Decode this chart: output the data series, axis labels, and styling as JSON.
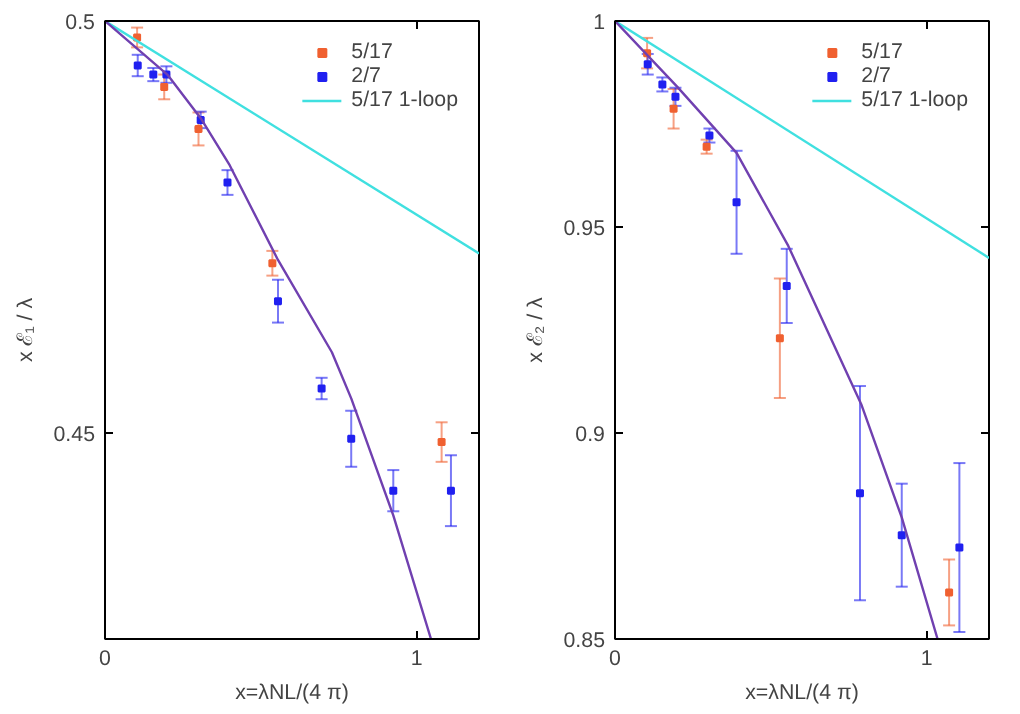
{
  "chart_data": [
    {
      "type": "scatter",
      "xlabel": "x=λNL/(4 π)",
      "ylabel": "x ℰ₁ / λ",
      "xlim": [
        0,
        1.2
      ],
      "ylim": [
        0.425,
        0.5
      ],
      "xticks": [
        0,
        1
      ],
      "yticks": [
        0.45,
        0.5
      ],
      "grid": false,
      "legend": "top right",
      "marker": "square",
      "series": [
        {
          "name": "5/17",
          "color": "#f06030",
          "x": [
            0.103,
            0.19,
            0.3,
            0.537,
            1.08
          ],
          "values": [
            0.498,
            0.492,
            0.4869,
            0.4706,
            0.4489
          ],
          "errors": [
            0.0012,
            0.0015,
            0.002,
            0.0015,
            0.0024
          ]
        },
        {
          "name": "2/7",
          "color": "#2020f0",
          "x": [
            0.105,
            0.155,
            0.197,
            0.307,
            0.393,
            0.555,
            0.695,
            0.79,
            0.925,
            1.11
          ],
          "values": [
            0.4946,
            0.4935,
            0.4935,
            0.488,
            0.4804,
            0.466,
            0.4554,
            0.4493,
            0.443,
            0.443
          ],
          "errors": [
            0.0013,
            0.0008,
            0.001,
            0.001,
            0.0015,
            0.0026,
            0.0013,
            0.0034,
            0.0025,
            0.0043
          ]
        },
        {
          "name": "5/17 1-loop",
          "type": "line",
          "marker": "none",
          "color": "#40e0e0",
          "x": [
            0,
            1.2
          ],
          "values": [
            0.5,
            0.4718
          ]
        },
        {
          "type": "line",
          "marker": "none",
          "color": "#7040b0",
          "x": [
            0,
            0.2,
            0.307,
            0.4,
            0.555,
            0.728,
            0.79,
            0.925,
            1.046
          ],
          "values": [
            0.5,
            0.4935,
            0.4882,
            0.4825,
            0.471,
            0.4598,
            0.4542,
            0.44,
            0.425
          ]
        }
      ]
    },
    {
      "type": "scatter",
      "xlabel": "x=λNL/(4 π)",
      "ylabel": "x ℰ₂ / λ",
      "xlim": [
        0,
        1.2
      ],
      "ylim": [
        0.85,
        1
      ],
      "xticks": [
        0,
        1
      ],
      "yticks": [
        0.85,
        0.9,
        0.95,
        1
      ],
      "grid": false,
      "legend": "top right",
      "marker": "square",
      "series": [
        {
          "name": "5/17",
          "color": "#f06030",
          "x": [
            0.103,
            0.188,
            0.294,
            0.529,
            1.072
          ],
          "values": [
            0.9922,
            0.9787,
            0.9695,
            0.923,
            0.8613
          ],
          "errors": [
            0.0037,
            0.0048,
            0.0017,
            0.0145,
            0.008
          ]
        },
        {
          "name": "2/7",
          "color": "#2020f0",
          "x": [
            0.105,
            0.152,
            0.194,
            0.303,
            0.39,
            0.551,
            0.786,
            0.92,
            1.105
          ],
          "values": [
            0.9895,
            0.9846,
            0.9816,
            0.9722,
            0.956,
            0.9357,
            0.8854,
            0.8752,
            0.8722
          ],
          "errors": [
            0.0025,
            0.0017,
            0.0022,
            0.0017,
            0.0125,
            0.009,
            0.026,
            0.0125,
            0.0205
          ]
        },
        {
          "name": "5/17 1-loop",
          "type": "line",
          "marker": "none",
          "color": "#40e0e0",
          "x": [
            0,
            1.2
          ],
          "values": [
            1,
            0.9425
          ]
        },
        {
          "type": "line",
          "marker": "none",
          "color": "#7040b0",
          "x": [
            0,
            0.2,
            0.39,
            0.556,
            0.79,
            0.92,
            1.035
          ],
          "values": [
            1,
            0.984,
            0.968,
            0.9454,
            0.907,
            0.8795,
            0.85
          ]
        }
      ]
    }
  ]
}
